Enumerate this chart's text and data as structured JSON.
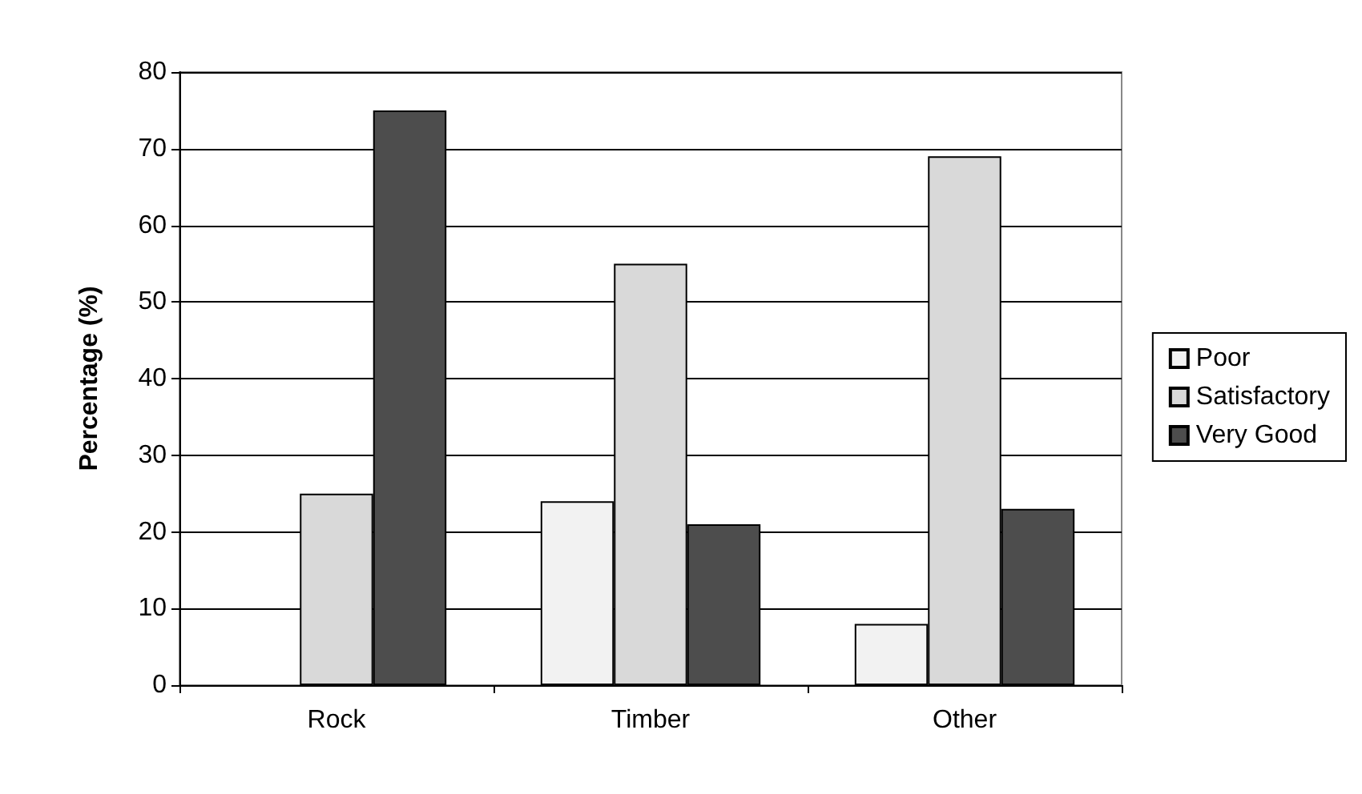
{
  "chart_data": {
    "type": "bar",
    "ylabel": "Percentage (%)",
    "categories": [
      "Rock",
      "Timber",
      "Other"
    ],
    "series": [
      {
        "name": "Poor",
        "color": "#f2f2f2",
        "values": [
          0,
          24,
          8
        ]
      },
      {
        "name": "Satisfactory",
        "color": "#d9d9d9",
        "values": [
          25,
          55,
          69
        ]
      },
      {
        "name": "Very Good",
        "color": "#4d4d4d",
        "values": [
          75,
          21,
          23
        ]
      }
    ],
    "ylim": [
      0,
      80
    ],
    "yticks": [
      0,
      10,
      20,
      30,
      40,
      50,
      60,
      70,
      80
    ],
    "grid": "y",
    "legend": "right"
  }
}
